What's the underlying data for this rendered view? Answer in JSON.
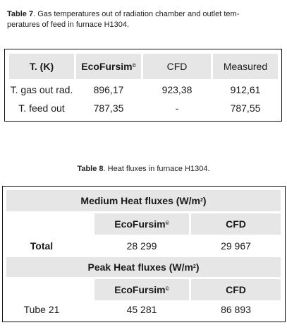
{
  "table7": {
    "caption_label": "Table 7",
    "caption_line1": ". Gas temperatures out of radiation chamber and outlet tem-",
    "caption_line2": "peratures of feed in furnace H1304.",
    "headers": {
      "col0": "T. (K)",
      "col1": "EcoFursim",
      "col1_mark": "©",
      "col2": "CFD",
      "col3": "Measured"
    },
    "rows": [
      {
        "label": "T. gas out rad.",
        "ecofursim": "896,17",
        "cfd": "923,38",
        "measured": "912,61"
      },
      {
        "label": "T. feed out",
        "ecofursim": "787,35",
        "cfd": "-",
        "measured": "787,55"
      }
    ]
  },
  "table8": {
    "caption_label": "Table 8",
    "caption_text": ". Heat fluxes in furnace H1304.",
    "medium_header": "Medium Heat fluxes (W/m",
    "medium_header_sup": "2",
    "medium_header_end": ")",
    "medium_cols": {
      "col1": "EcoFursim",
      "col1_mark": "©",
      "col2": "CFD"
    },
    "medium_row": {
      "label": "Total",
      "ecofursim": "28 299",
      "cfd": "29 967"
    },
    "peak_header": "Peak Heat fluxes (W/m",
    "peak_header_sup": "2",
    "peak_header_end": ")",
    "peak_cols": {
      "col1": "EcoFursim",
      "col1_mark": "©",
      "col2": "CFD"
    },
    "peak_row": {
      "label": "Tube 21",
      "ecofursim": "45 281",
      "cfd": "86 893"
    }
  },
  "colors": {
    "header_fill": "#e6e6e6",
    "border": "#111111"
  }
}
